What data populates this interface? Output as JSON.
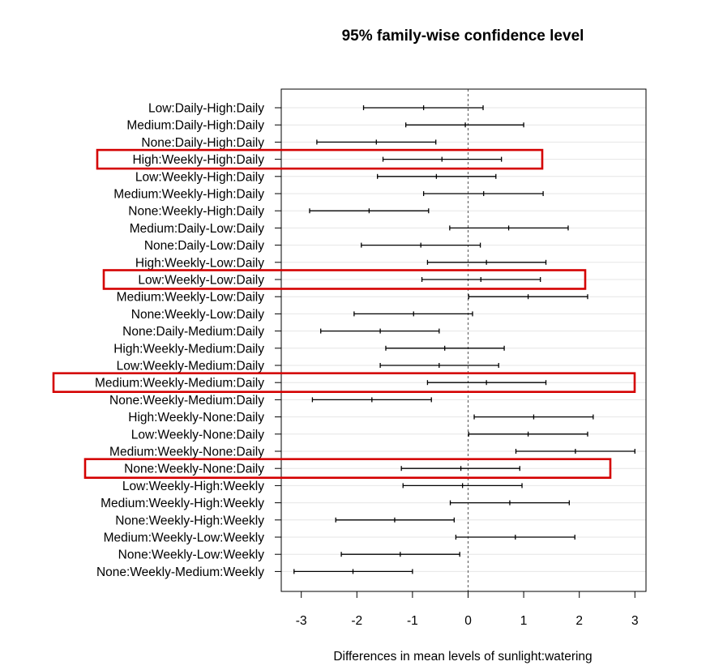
{
  "chart_data": {
    "type": "errorbar",
    "title": "95% family-wise confidence level",
    "xlabel": "Differences in mean levels of sunlight:watering",
    "ylabel": "",
    "xlim": [
      -3.35,
      3.2
    ],
    "xticks": [
      -3,
      -2,
      -1,
      0,
      1,
      2,
      3
    ],
    "xtick_labels": [
      "-3",
      "-2",
      "-1",
      "0",
      "1",
      "2",
      "3"
    ],
    "reference_line": 0,
    "grid": false,
    "colors": {
      "interval": "#000000",
      "highlight_box": "#d40000",
      "reference": "#555555",
      "row_line": "#e6e6e6"
    },
    "comparisons": [
      {
        "label": "Low:Daily-High:Daily",
        "diff": -0.8,
        "lwr": -1.88,
        "upr": 0.27,
        "highlight": false
      },
      {
        "label": "Medium:Daily-High:Daily",
        "diff": -0.05,
        "lwr": -1.12,
        "upr": 1.0,
        "highlight": false
      },
      {
        "label": "None:Daily-High:Daily",
        "diff": -1.65,
        "lwr": -2.72,
        "upr": -0.58,
        "highlight": false
      },
      {
        "label": "High:Weekly-High:Daily",
        "diff": -0.47,
        "lwr": -1.53,
        "upr": 0.6,
        "highlight": true
      },
      {
        "label": "Low:Weekly-High:Daily",
        "diff": -0.57,
        "lwr": -1.63,
        "upr": 0.5,
        "highlight": false
      },
      {
        "label": "Medium:Weekly-High:Daily",
        "diff": 0.28,
        "lwr": -0.8,
        "upr": 1.35,
        "highlight": false
      },
      {
        "label": "None:Weekly-High:Daily",
        "diff": -1.78,
        "lwr": -2.85,
        "upr": -0.71,
        "highlight": false
      },
      {
        "label": "Medium:Daily-Low:Daily",
        "diff": 0.73,
        "lwr": -0.33,
        "upr": 1.8,
        "highlight": false
      },
      {
        "label": "None:Daily-Low:Daily",
        "diff": -0.85,
        "lwr": -1.92,
        "upr": 0.22,
        "highlight": false
      },
      {
        "label": "High:Weekly-Low:Daily",
        "diff": 0.33,
        "lwr": -0.73,
        "upr": 1.4,
        "highlight": false
      },
      {
        "label": "Low:Weekly-Low:Daily",
        "diff": 0.23,
        "lwr": -0.83,
        "upr": 1.3,
        "highlight": true
      },
      {
        "label": "Medium:Weekly-Low:Daily",
        "diff": 1.08,
        "lwr": 0.01,
        "upr": 2.15,
        "highlight": false
      },
      {
        "label": "None:Weekly-Low:Daily",
        "diff": -0.98,
        "lwr": -2.05,
        "upr": 0.08,
        "highlight": false
      },
      {
        "label": "None:Daily-Medium:Daily",
        "diff": -1.58,
        "lwr": -2.65,
        "upr": -0.52,
        "highlight": false
      },
      {
        "label": "High:Weekly-Medium:Daily",
        "diff": -0.42,
        "lwr": -1.48,
        "upr": 0.65,
        "highlight": false
      },
      {
        "label": "Low:Weekly-Medium:Daily",
        "diff": -0.52,
        "lwr": -1.58,
        "upr": 0.55,
        "highlight": false
      },
      {
        "label": "Medium:Weekly-Medium:Daily",
        "diff": 0.33,
        "lwr": -0.73,
        "upr": 1.4,
        "highlight": true
      },
      {
        "label": "None:Weekly-Medium:Daily",
        "diff": -1.73,
        "lwr": -2.8,
        "upr": -0.66,
        "highlight": false
      },
      {
        "label": "High:Weekly-None:Daily",
        "diff": 1.18,
        "lwr": 0.11,
        "upr": 2.25,
        "highlight": false
      },
      {
        "label": "Low:Weekly-None:Daily",
        "diff": 1.08,
        "lwr": 0.01,
        "upr": 2.15,
        "highlight": false
      },
      {
        "label": "Medium:Weekly-None:Daily",
        "diff": 1.93,
        "lwr": 0.86,
        "upr": 3.0,
        "highlight": false
      },
      {
        "label": "None:Weekly-None:Daily",
        "diff": -0.13,
        "lwr": -1.2,
        "upr": 0.93,
        "highlight": true
      },
      {
        "label": "Low:Weekly-High:Weekly",
        "diff": -0.1,
        "lwr": -1.17,
        "upr": 0.97,
        "highlight": false
      },
      {
        "label": "Medium:Weekly-High:Weekly",
        "diff": 0.75,
        "lwr": -0.32,
        "upr": 1.82,
        "highlight": false
      },
      {
        "label": "None:Weekly-High:Weekly",
        "diff": -1.32,
        "lwr": -2.38,
        "upr": -0.25,
        "highlight": false
      },
      {
        "label": "Medium:Weekly-Low:Weekly",
        "diff": 0.85,
        "lwr": -0.22,
        "upr": 1.92,
        "highlight": false
      },
      {
        "label": "None:Weekly-Low:Weekly",
        "diff": -1.22,
        "lwr": -2.28,
        "upr": -0.15,
        "highlight": false
      },
      {
        "label": "None:Weekly-Medium:Weekly",
        "diff": -2.07,
        "lwr": -3.13,
        "upr": -1.0,
        "highlight": false
      }
    ]
  }
}
